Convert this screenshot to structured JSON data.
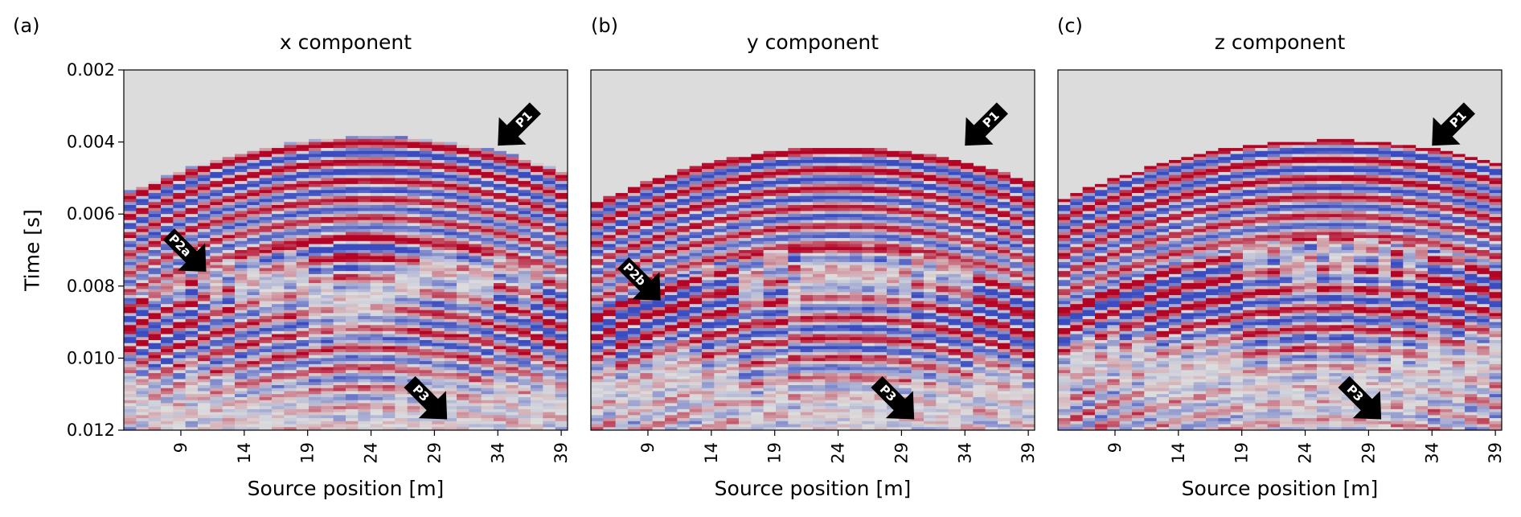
{
  "chart_data": [
    {
      "panel_label": "(a)",
      "title": "x component",
      "type": "heatmap",
      "xlabel": "Source position [m]",
      "ylabel": "Time [s]",
      "xticks": [
        9,
        14,
        19,
        24,
        29,
        34,
        39
      ],
      "yticks": [
        "0.002",
        "0.004",
        "0.006",
        "0.008",
        "0.010",
        "0.012"
      ],
      "xlim": [
        4.5,
        39.5
      ],
      "ylim": [
        0.012,
        0.002
      ],
      "colormap": "coolwarm",
      "background_color": "#dcdcdc",
      "first_arrival_apex_time": 0.0039,
      "first_arrival_apex_position": 24,
      "first_arrival_edge_time": 0.0055,
      "arrows": [
        {
          "label": "P1",
          "tip_x": 34,
          "tip_y": 0.0041
        },
        {
          "label": "P2a",
          "tip_x": 11,
          "tip_y": 0.0076
        },
        {
          "label": "P3",
          "tip_x": 30,
          "tip_y": 0.0117
        }
      ]
    },
    {
      "panel_label": "(b)",
      "title": "y component",
      "type": "heatmap",
      "xlabel": "Source position [m]",
      "ylabel": "",
      "xticks": [
        9,
        14,
        19,
        24,
        29,
        34,
        39
      ],
      "yticks": [],
      "xlim": [
        4.5,
        39.5
      ],
      "ylim": [
        0.012,
        0.002
      ],
      "colormap": "coolwarm",
      "background_color": "#dcdcdc",
      "first_arrival_apex_time": 0.0042,
      "first_arrival_apex_position": 24,
      "first_arrival_edge_time": 0.0058,
      "arrows": [
        {
          "label": "P1",
          "tip_x": 34,
          "tip_y": 0.0041
        },
        {
          "label": "P2b",
          "tip_x": 10,
          "tip_y": 0.0084
        },
        {
          "label": "P3",
          "tip_x": 30,
          "tip_y": 0.0117
        }
      ]
    },
    {
      "panel_label": "(c)",
      "title": "z component",
      "type": "heatmap",
      "xlabel": "Source position [m]",
      "ylabel": "",
      "xticks": [
        9,
        14,
        19,
        24,
        29,
        34,
        39
      ],
      "yticks": [],
      "xlim": [
        4.5,
        39.5
      ],
      "ylim": [
        0.012,
        0.002
      ],
      "colormap": "coolwarm",
      "background_color": "#dcdcdc",
      "first_arrival_apex_time": 0.004,
      "first_arrival_apex_position": 26,
      "first_arrival_edge_time": 0.0057,
      "arrows": [
        {
          "label": "P1",
          "tip_x": 34,
          "tip_y": 0.0041
        },
        {
          "label": "P3",
          "tip_x": 30,
          "tip_y": 0.0117
        }
      ]
    }
  ]
}
